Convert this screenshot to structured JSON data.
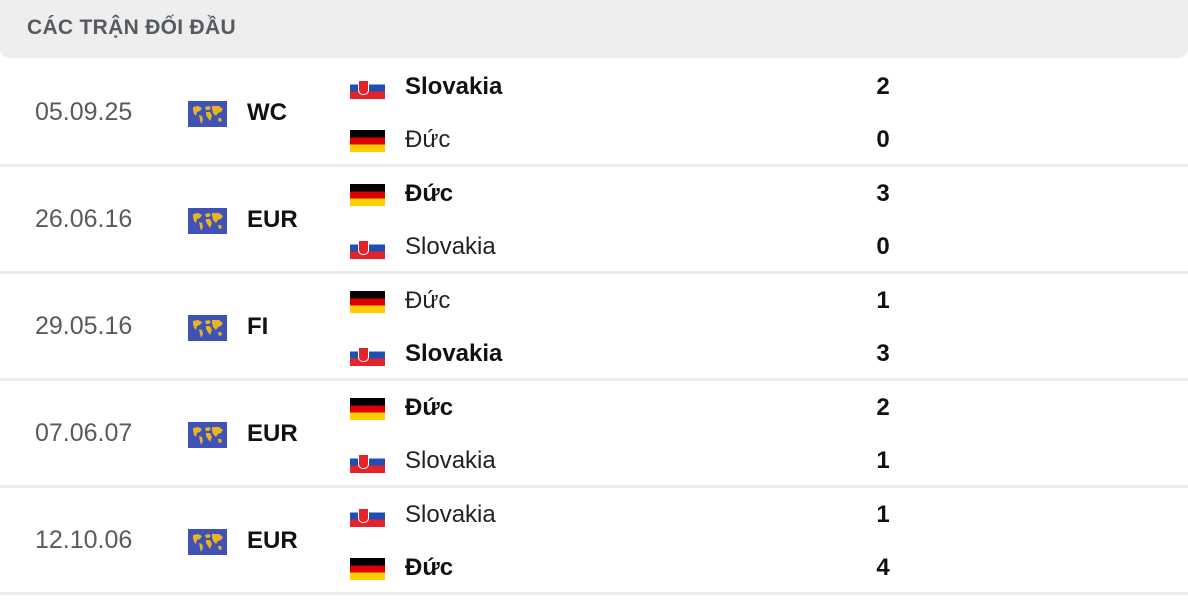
{
  "header": {
    "title": "CÁC TRẬN ĐỐI ĐẦU"
  },
  "matches": [
    {
      "date": "05.09.25",
      "competition": "WC",
      "home": {
        "name": "Slovakia",
        "flag": "slovakia",
        "score": "2",
        "winner": true
      },
      "away": {
        "name": "Đức",
        "flag": "germany",
        "score": "0",
        "winner": false
      }
    },
    {
      "date": "26.06.16",
      "competition": "EUR",
      "home": {
        "name": "Đức",
        "flag": "germany",
        "score": "3",
        "winner": true
      },
      "away": {
        "name": "Slovakia",
        "flag": "slovakia",
        "score": "0",
        "winner": false
      }
    },
    {
      "date": "29.05.16",
      "competition": "FI",
      "home": {
        "name": "Đức",
        "flag": "germany",
        "score": "1",
        "winner": false
      },
      "away": {
        "name": "Slovakia",
        "flag": "slovakia",
        "score": "3",
        "winner": true
      }
    },
    {
      "date": "07.06.07",
      "competition": "EUR",
      "home": {
        "name": "Đức",
        "flag": "germany",
        "score": "2",
        "winner": true
      },
      "away": {
        "name": "Slovakia",
        "flag": "slovakia",
        "score": "1",
        "winner": false
      }
    },
    {
      "date": "12.10.06",
      "competition": "EUR",
      "home": {
        "name": "Slovakia",
        "flag": "slovakia",
        "score": "1",
        "winner": false
      },
      "away": {
        "name": "Đức",
        "flag": "germany",
        "score": "4",
        "winner": true
      }
    }
  ],
  "colors": {
    "competition_icon": "#4052b5",
    "header_bg": "#eeeeee"
  }
}
